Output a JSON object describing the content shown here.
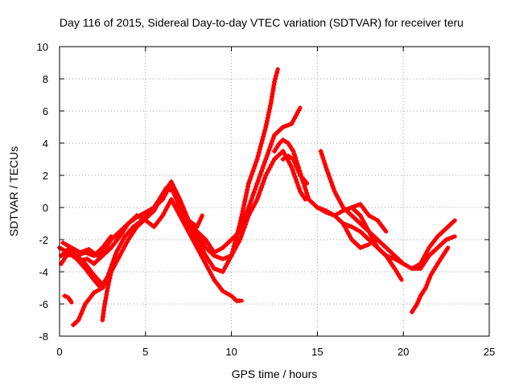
{
  "chart_data": {
    "type": "line",
    "title": "Day 116 of 2015, Sidereal Day-to-day VTEC variation (SDTVAR) for receiver teru",
    "xlabel": "GPS time / hours",
    "ylabel": "SDTVAR / TECUs",
    "xlim": [
      0,
      25
    ],
    "ylim": [
      -8,
      10
    ],
    "xticks": [
      0,
      5,
      10,
      15,
      20,
      25
    ],
    "yticks": [
      -8,
      -6,
      -4,
      -2,
      0,
      2,
      4,
      6,
      8,
      10
    ],
    "grid": true,
    "marker": "+",
    "color": "#ff0000",
    "series": [
      {
        "name": "s1",
        "x": [
          0.0,
          0.5,
          1.0,
          1.5,
          2.0,
          2.4,
          2.8,
          3.3,
          3.8,
          4.3,
          4.8,
          5.3,
          5.8,
          6.2,
          6.6,
          7.0,
          7.5,
          8.0,
          8.5,
          9.0,
          9.5,
          10.0,
          10.5,
          11.0,
          11.5,
          12.0,
          12.3,
          12.5,
          12.7
        ],
        "y": [
          -2.5,
          -2.8,
          -3.2,
          -3.8,
          -4.5,
          -5.0,
          -4.3,
          -2.8,
          -1.8,
          -1.2,
          -0.8,
          -0.3,
          0.5,
          1.2,
          1.0,
          0.0,
          -1.0,
          -2.0,
          -3.0,
          -3.8,
          -4.0,
          -3.0,
          -1.0,
          1.5,
          3.0,
          5.0,
          6.5,
          7.8,
          8.6
        ]
      },
      {
        "name": "s2",
        "x": [
          0.1,
          0.5,
          1.0,
          1.5,
          2.0,
          2.5,
          3.0,
          3.5,
          4.0,
          4.5,
          5.0,
          5.5,
          6.0,
          6.5,
          7.0,
          7.5,
          8.0,
          8.5,
          9.0,
          9.5,
          10.0,
          10.5,
          11.0,
          11.5,
          12.0,
          12.5,
          13.0,
          13.5,
          14.0
        ],
        "y": [
          -3.0,
          -2.6,
          -3.0,
          -3.5,
          -4.2,
          -4.8,
          -4.0,
          -3.0,
          -2.0,
          -1.2,
          -0.7,
          -0.2,
          0.8,
          1.6,
          0.5,
          -0.8,
          -1.5,
          -2.0,
          -2.8,
          -2.5,
          -2.0,
          -1.5,
          0.0,
          1.5,
          3.0,
          4.5,
          5.0,
          5.2,
          6.2
        ]
      },
      {
        "name": "s3",
        "x": [
          0.1,
          0.4,
          0.8,
          1.2,
          1.6,
          2.0,
          2.5,
          3.0,
          3.5,
          4.0,
          4.5,
          5.0,
          5.5,
          6.0,
          6.5,
          7.0,
          7.5,
          8.0,
          8.3
        ],
        "y": [
          -3.5,
          -3.0,
          -2.9,
          -3.3,
          -3.2,
          -3.5,
          -3.0,
          -2.5,
          -1.8,
          -1.0,
          -0.6,
          -0.3,
          0.0,
          0.5,
          1.5,
          0.5,
          -0.8,
          -1.2,
          -0.5
        ]
      },
      {
        "name": "s4",
        "x": [
          0.2,
          0.7,
          1.2,
          1.7,
          2.2,
          2.7,
          3.0,
          3.5,
          4.0,
          4.5,
          5.0,
          5.5,
          6.0,
          6.5,
          7.0,
          7.5,
          8.0,
          8.5,
          9.0,
          9.5,
          10.0,
          10.3,
          10.6
        ],
        "y": [
          -2.2,
          -2.5,
          -2.8,
          -2.6,
          -3.0,
          -2.5,
          -2.0,
          -1.5,
          -1.0,
          -0.5,
          -0.8,
          -1.2,
          -0.5,
          0.5,
          -0.5,
          -1.5,
          -2.5,
          -3.5,
          -4.5,
          -5.2,
          -5.5,
          -5.8,
          -5.8
        ]
      },
      {
        "name": "s5",
        "x": [
          0.3,
          0.5,
          0.7
        ],
        "y": [
          -5.5,
          -5.6,
          -5.9
        ]
      },
      {
        "name": "s6",
        "x": [
          0.8,
          1.1,
          1.5,
          2.0,
          2.5,
          3.0
        ],
        "y": [
          -7.3,
          -7.0,
          -6.0,
          -5.3,
          -5.0,
          -4.0
        ]
      },
      {
        "name": "s7",
        "x": [
          2.5,
          2.6,
          2.8,
          3.0,
          3.2
        ],
        "y": [
          -7.0,
          -6.2,
          -5.0,
          -4.0,
          -3.5
        ]
      },
      {
        "name": "s8",
        "x": [
          1.0,
          1.5,
          2.0,
          2.5,
          3.0
        ],
        "y": [
          -3.0,
          -2.8,
          -3.0,
          -2.5,
          -1.8
        ]
      },
      {
        "name": "s9",
        "x": [
          8.0,
          8.5,
          9.0,
          9.5,
          10.0,
          10.5,
          11.0,
          11.5,
          12.0,
          12.5,
          13.0,
          13.5,
          14.0,
          14.3
        ],
        "y": [
          -1.5,
          -2.5,
          -3.0,
          -3.2,
          -3.0,
          -2.0,
          -0.5,
          0.5,
          2.0,
          3.0,
          3.5,
          2.5,
          1.0,
          0.5
        ]
      },
      {
        "name": "s10",
        "x": [
          12.5,
          12.8,
          13.0,
          13.3,
          13.6,
          13.9,
          14.2,
          14.5,
          15.0,
          15.5,
          16.0,
          16.5,
          17.0,
          17.5,
          18.0,
          18.5,
          19.0,
          19.5,
          20.0,
          20.5,
          21.0,
          21.5,
          22.0,
          22.5,
          23.0
        ],
        "y": [
          3.5,
          4.0,
          4.2,
          4.0,
          3.5,
          2.5,
          1.5,
          0.5,
          0.0,
          -0.2,
          -0.5,
          -1.0,
          -1.2,
          -1.5,
          -2.0,
          -2.5,
          -3.0,
          -3.2,
          -3.5,
          -3.8,
          -3.5,
          -2.5,
          -1.8,
          -1.3,
          -0.8
        ]
      },
      {
        "name": "s11",
        "x": [
          15.2,
          15.5,
          16.0,
          16.5,
          17.0,
          17.5,
          18.0,
          18.5,
          19.0,
          19.5,
          20.0,
          20.5,
          21.0,
          21.5,
          22.0,
          22.5,
          23.0
        ],
        "y": [
          3.5,
          2.5,
          1.0,
          0.0,
          -0.5,
          -1.0,
          -1.5,
          -2.0,
          -2.5,
          -3.0,
          -3.5,
          -3.8,
          -3.8,
          -3.0,
          -2.5,
          -2.0,
          -1.8
        ]
      },
      {
        "name": "s12",
        "x": [
          15.0,
          15.5,
          16.0,
          16.5,
          17.0,
          17.5,
          18.0,
          18.5,
          19.0,
          19.5,
          19.9
        ],
        "y": [
          0.0,
          -0.3,
          -0.5,
          -0.2,
          0.0,
          -0.5,
          -1.5,
          -2.5,
          -3.0,
          -3.8,
          -4.5
        ]
      },
      {
        "name": "s13",
        "x": [
          17.0,
          17.5,
          18.0,
          18.5,
          19.0
        ],
        "y": [
          0.0,
          0.2,
          -0.5,
          -0.8,
          -1.5
        ]
      },
      {
        "name": "s14",
        "x": [
          20.5,
          20.8,
          21.0,
          21.3,
          21.6,
          22.0,
          22.3,
          22.6
        ],
        "y": [
          -6.5,
          -6.0,
          -5.5,
          -5.0,
          -4.2,
          -3.5,
          -3.0,
          -2.5
        ]
      },
      {
        "name": "s15",
        "x": [
          13.0,
          13.3,
          13.6,
          14.0,
          14.4
        ],
        "y": [
          3.0,
          3.2,
          3.0,
          2.0,
          1.5
        ]
      },
      {
        "name": "s16",
        "x": [
          16.5,
          17.0,
          17.5,
          18.0
        ],
        "y": [
          -1.0,
          -2.0,
          -2.5,
          -2.3
        ]
      }
    ]
  }
}
